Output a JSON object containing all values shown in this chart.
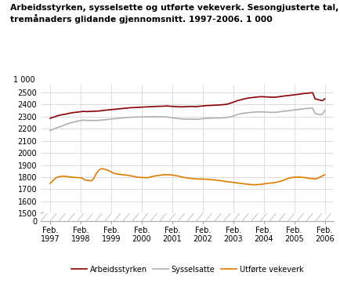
{
  "title": "Arbeidsstyrken, sysselsette og utførte vekeverk. Sesongjusterte tal,\ntremånaders glidande gjennomsnitt. 1997-2006. 1 000",
  "ylabel_top": "1 000",
  "line_arbeid_color": "#8b0000",
  "line_syssel_color": "#b0b0b0",
  "line_utfort_color": "#e07b00",
  "legend_labels": [
    "Arbeidsstyrken",
    "Sysselsatte",
    "Utførte vekeverk"
  ],
  "x_tick_labels": [
    "Feb.\n1997",
    "Feb.\n1998",
    "Feb.\n1999",
    "Feb.\n2000",
    "Feb.\n2001",
    "Feb.\n2002",
    "Feb.\n2003",
    "Feb.\n2004",
    "Feb.\n2005",
    "Feb.\n2006"
  ],
  "ylim_main": [
    1500,
    2600
  ],
  "ylim_break": [
    0,
    30
  ],
  "yticks_main": [
    1500,
    1600,
    1700,
    1800,
    1900,
    2000,
    2100,
    2200,
    2300,
    2400,
    2500
  ],
  "arbeidsstyrken": [
    2285,
    2292,
    2298,
    2305,
    2310,
    2315,
    2318,
    2322,
    2327,
    2330,
    2333,
    2335,
    2338,
    2340,
    2342,
    2340,
    2341,
    2342,
    2343,
    2344,
    2345,
    2347,
    2350,
    2352,
    2354,
    2356,
    2358,
    2360,
    2362,
    2364,
    2366,
    2368,
    2370,
    2372,
    2373,
    2374,
    2375,
    2376,
    2377,
    2378,
    2379,
    2380,
    2381,
    2382,
    2383,
    2384,
    2384,
    2385,
    2387,
    2385,
    2383,
    2382,
    2381,
    2380,
    2379,
    2380,
    2381,
    2382,
    2383,
    2382,
    2381,
    2383,
    2385,
    2387,
    2389,
    2390,
    2391,
    2392,
    2393,
    2394,
    2395,
    2397,
    2399,
    2402,
    2408,
    2415,
    2422,
    2430,
    2435,
    2440,
    2445,
    2450,
    2453,
    2455,
    2458,
    2460,
    2462,
    2463,
    2462,
    2461,
    2460,
    2459,
    2458,
    2460,
    2462,
    2465,
    2468,
    2470,
    2472,
    2475,
    2477,
    2480,
    2482,
    2485,
    2488,
    2490,
    2492,
    2494,
    2496,
    2445,
    2440,
    2435,
    2430,
    2445
  ],
  "sysselsatte": [
    2185,
    2192,
    2200,
    2208,
    2215,
    2222,
    2230,
    2238,
    2245,
    2250,
    2255,
    2260,
    2265,
    2268,
    2270,
    2268,
    2267,
    2267,
    2267,
    2267,
    2268,
    2270,
    2272,
    2274,
    2276,
    2278,
    2280,
    2282,
    2284,
    2286,
    2288,
    2290,
    2292,
    2293,
    2294,
    2295,
    2295,
    2296,
    2296,
    2297,
    2297,
    2298,
    2298,
    2298,
    2298,
    2298,
    2297,
    2296,
    2296,
    2293,
    2290,
    2287,
    2285,
    2282,
    2280,
    2279,
    2278,
    2278,
    2278,
    2277,
    2276,
    2278,
    2280,
    2282,
    2284,
    2285,
    2286,
    2287,
    2287,
    2287,
    2287,
    2288,
    2290,
    2292,
    2296,
    2302,
    2308,
    2315,
    2320,
    2325,
    2328,
    2330,
    2332,
    2334,
    2336,
    2337,
    2338,
    2338,
    2337,
    2336,
    2335,
    2334,
    2333,
    2335,
    2337,
    2340,
    2343,
    2345,
    2347,
    2350,
    2352,
    2355,
    2357,
    2360,
    2362,
    2365,
    2367,
    2368,
    2368,
    2325,
    2320,
    2315,
    2318,
    2350
  ],
  "utforte": [
    1748,
    1768,
    1788,
    1800,
    1805,
    1808,
    1808,
    1805,
    1802,
    1800,
    1798,
    1797,
    1796,
    1795,
    1780,
    1775,
    1772,
    1770,
    1790,
    1830,
    1855,
    1870,
    1868,
    1862,
    1855,
    1845,
    1835,
    1828,
    1825,
    1822,
    1820,
    1818,
    1815,
    1812,
    1808,
    1804,
    1800,
    1798,
    1797,
    1796,
    1795,
    1800,
    1805,
    1810,
    1812,
    1815,
    1818,
    1820,
    1820,
    1820,
    1818,
    1815,
    1812,
    1808,
    1802,
    1798,
    1795,
    1792,
    1790,
    1787,
    1785,
    1785,
    1785,
    1784,
    1783,
    1782,
    1780,
    1778,
    1776,
    1774,
    1772,
    1768,
    1765,
    1762,
    1760,
    1758,
    1755,
    1752,
    1750,
    1748,
    1745,
    1742,
    1740,
    1738,
    1737,
    1738,
    1740,
    1742,
    1745,
    1748,
    1750,
    1752,
    1755,
    1758,
    1762,
    1768,
    1775,
    1782,
    1790,
    1795,
    1798,
    1800,
    1800,
    1800,
    1798,
    1795,
    1792,
    1790,
    1788,
    1785,
    1790,
    1800,
    1810,
    1820
  ]
}
